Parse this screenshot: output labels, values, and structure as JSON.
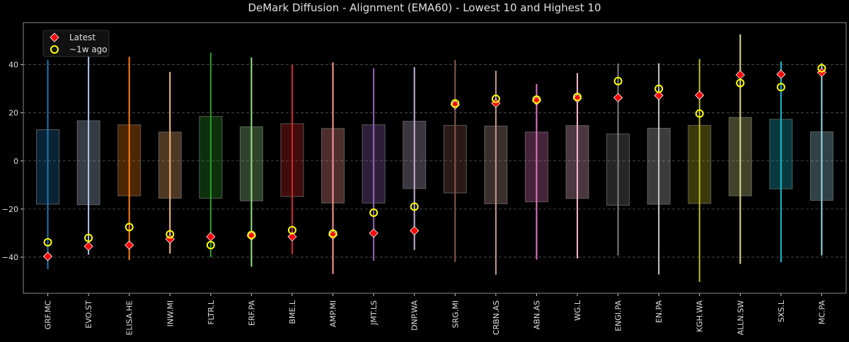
{
  "chart_data": {
    "type": "bar",
    "title": "DeMark Diffusion - Alignment (EMA60) - Lowest 10 and Highest 10",
    "xlabel": "",
    "ylabel": "",
    "ylim": [
      -55,
      57.5
    ],
    "yticks": [
      -40,
      -20,
      0,
      20,
      40
    ],
    "grid": true,
    "legend_placement": "top-left",
    "legend": [
      {
        "label": "Latest",
        "marker": "diamond",
        "color": "#ff0000"
      },
      {
        "label": "~1w ago",
        "marker": "circle",
        "color": "#ffff00"
      }
    ],
    "categories": [
      "GRF.MC",
      "EVO.ST",
      "ELISA.HE",
      "INW.MI",
      "FLTR.L",
      "ERF.PA",
      "BME.L",
      "AMP.MI",
      "JMT.LS",
      "DNP.WA",
      "SRG.MI",
      "CRBN.AS",
      "ABN.AS",
      "WG.L",
      "ENGI.PA",
      "EN.PA",
      "KGH.WA",
      "ALLN.SW",
      "SXS.L",
      "MC.PA"
    ],
    "colors": [
      "#1f77b4",
      "#aec7e8",
      "#ff7f0e",
      "#ffbb78",
      "#2ca02c",
      "#98df8a",
      "#d62728",
      "#ff9896",
      "#9467bd",
      "#c5b0d5",
      "#8c564b",
      "#c49c94",
      "#e377c2",
      "#f7b6d2",
      "#7f7f7f",
      "#c7c7c7",
      "#bcbd22",
      "#dbdb8d",
      "#17becf",
      "#9edae5"
    ],
    "box_high": [
      13,
      16.7,
      15,
      12,
      18.5,
      14.2,
      15.5,
      13.5,
      15,
      16.5,
      14.8,
      14.5,
      12,
      14.7,
      11.2,
      13.6,
      14.8,
      18.1,
      17.3,
      12.1
    ],
    "box_low": [
      -18,
      -18.2,
      -14.5,
      -15.5,
      -15.5,
      -16.6,
      -14.8,
      -17.5,
      -17.5,
      -11.5,
      -13.3,
      -17.8,
      -17,
      -15.6,
      -18.4,
      -18,
      -17.7,
      -14.5,
      -11.6,
      -16.4
    ],
    "whisker_high": [
      42,
      49.5,
      43.3,
      37,
      45,
      43,
      40,
      41,
      38.5,
      39,
      42,
      37.5,
      32,
      36.5,
      40.5,
      40.6,
      42.4,
      52.6,
      41.4,
      40.7
    ],
    "whisker_low": [
      -45,
      -39,
      -41.2,
      -38.5,
      -40,
      -44,
      -38.8,
      -47,
      -41.5,
      -37,
      -42,
      -47.3,
      -41,
      -40.5,
      -39.3,
      -47.2,
      -50.3,
      -42.8,
      -42.1,
      -39.3
    ],
    "series": [
      {
        "name": "Latest",
        "values": [
          -39.7,
          -35.5,
          -35,
          -32.5,
          -31.5,
          -31.2,
          -31.5,
          -30.8,
          -30,
          -29,
          23.3,
          24,
          25,
          26,
          26.3,
          27.2,
          27.3,
          35.8,
          36,
          36.8
        ]
      },
      {
        "name": "~1w ago",
        "values": [
          -33.8,
          -32,
          -27.5,
          -30.5,
          -35,
          -30.8,
          -28.8,
          -30.2,
          -21.5,
          -19,
          23.9,
          25.8,
          25.5,
          26.6,
          33.2,
          30,
          19.7,
          32.4,
          30.7,
          38.5
        ]
      }
    ]
  }
}
